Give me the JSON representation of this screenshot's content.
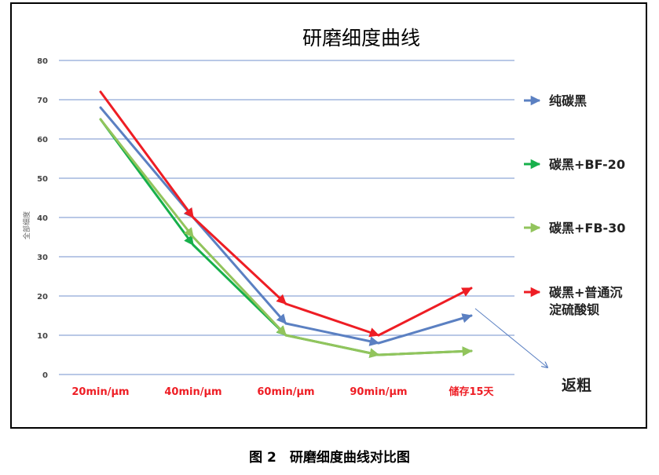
{
  "chart_data": {
    "type": "line",
    "title": "研磨细度曲线",
    "ylabel": "全部细度",
    "categories": [
      "20min/μm",
      "40min/μm",
      "60min/μm",
      "90min/μm",
      "储存15天"
    ],
    "ylim": [
      0,
      80
    ],
    "yticks": [
      0,
      10,
      20,
      30,
      40,
      50,
      60,
      70,
      80
    ],
    "grid": true,
    "legend_position": "right",
    "series": [
      {
        "name": "纯碳黑",
        "color": "#5b80c2",
        "values": [
          68,
          40,
          13,
          8,
          15
        ]
      },
      {
        "name": "碳黑+BF-20",
        "color": "#17b04b",
        "values": [
          65,
          33,
          10,
          5,
          6
        ]
      },
      {
        "name": "碳黑+FB-30",
        "color": "#92c45c",
        "values": [
          65,
          35,
          10,
          5,
          6
        ]
      },
      {
        "name": "碳黑+普通沉淀硫酸钡",
        "name_lines": [
          "碳黑+普通沉",
          "淀硫酸钡"
        ],
        "color": "#ee1d24",
        "values": [
          72,
          40,
          18,
          10,
          22
        ]
      }
    ],
    "annotation": {
      "text": "返粗",
      "arrow_color": "#5b80c2"
    }
  },
  "caption": "图 2　研磨细度曲线对比图"
}
